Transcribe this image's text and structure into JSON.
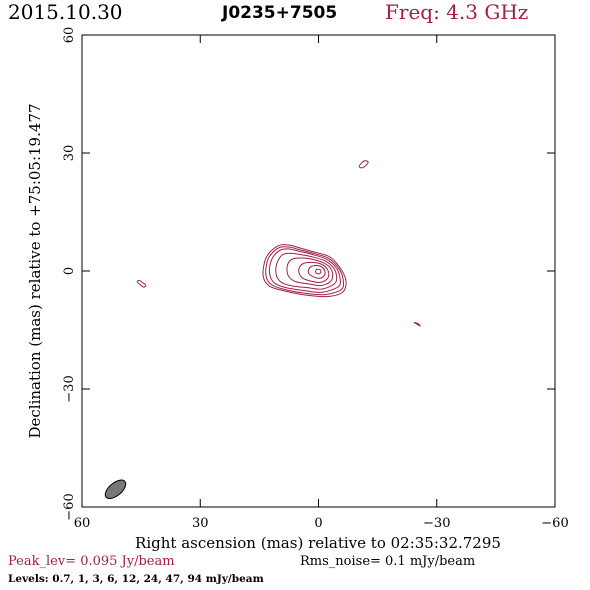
{
  "header": {
    "date": "2015.10.30",
    "source": "J0235+7505",
    "frequency": "Freq: 4.3 GHz"
  },
  "footer": {
    "peak": "Peak_lev=  0.095 Jy/beam",
    "rms": "Rms_noise=   0.1 mJy/beam",
    "levels": "Levels: 0.7,    1,    3,    6,   12,   24,   47,   94  mJy/beam"
  },
  "colors": {
    "contour": "#a0204a",
    "frame": "#000000",
    "beam_fill": "#777777",
    "accent_text": "#a0204a"
  },
  "chart_data": {
    "type": "contour",
    "xlabel": "Right ascension (mas) relative to 02:35:32.7295",
    "ylabel": "Declination (mas) relative to +75:05:19.477",
    "xlim": [
      60,
      -60
    ],
    "ylim": [
      -60,
      60
    ],
    "xticks": [
      60,
      30,
      0,
      -30,
      -60
    ],
    "yticks": [
      60,
      30,
      0,
      -30,
      -60
    ],
    "xtick_labels": [
      "60",
      "30",
      "0",
      "−30",
      "−60"
    ],
    "ytick_labels": [
      "60",
      "30",
      "0",
      "−30",
      "−60"
    ],
    "grid": false,
    "levels_mJy": [
      0.7,
      1,
      3,
      6,
      12,
      24,
      47,
      94
    ],
    "peak_Jy_per_beam": 0.095,
    "rms_mJy_per_beam": 0.1,
    "beam": {
      "x": 51.5,
      "y": -55.5,
      "major": 6.2,
      "minor": 3.2,
      "pa_deg": -40
    },
    "contours": [
      {
        "level": 0.7,
        "points": [
          [
            4,
            -6
          ],
          [
            -2,
            -6.5
          ],
          [
            -6,
            -5.5
          ],
          [
            -7,
            -3
          ],
          [
            -6,
            0
          ],
          [
            -3,
            3.5
          ],
          [
            1,
            4.8
          ],
          [
            4.5,
            5.8
          ],
          [
            7.5,
            6.6
          ],
          [
            10,
            6.5
          ],
          [
            12.5,
            4.6
          ],
          [
            13.7,
            2.2
          ],
          [
            14,
            -1.5
          ],
          [
            12.5,
            -3.8
          ],
          [
            9,
            -5
          ]
        ]
      },
      {
        "level": 1,
        "points": [
          [
            3.8,
            -5.6
          ],
          [
            -1.5,
            -6
          ],
          [
            -5.7,
            -4.8
          ],
          [
            -6.3,
            -2.5
          ],
          [
            -5.3,
            0.4
          ],
          [
            -2.6,
            3.2
          ],
          [
            1.3,
            4.5
          ],
          [
            4.7,
            5.4
          ],
          [
            7.5,
            6.1
          ],
          [
            9.8,
            6
          ],
          [
            12,
            4.3
          ],
          [
            13.1,
            2
          ],
          [
            13.3,
            -1.3
          ],
          [
            11.9,
            -3.5
          ],
          [
            8.6,
            -4.7
          ]
        ]
      },
      {
        "level": 3,
        "points": [
          [
            3.5,
            -5
          ],
          [
            -1,
            -5.4
          ],
          [
            -5,
            -4
          ],
          [
            -5.5,
            -2
          ],
          [
            -4.5,
            0.8
          ],
          [
            -2,
            3
          ],
          [
            1.5,
            4.2
          ],
          [
            4.8,
            5
          ],
          [
            7.4,
            5.6
          ],
          [
            9.5,
            5.4
          ],
          [
            11.3,
            3.9
          ],
          [
            12.3,
            1.6
          ],
          [
            12.3,
            -1.2
          ],
          [
            11,
            -3.2
          ],
          [
            8,
            -4.3
          ]
        ]
      },
      {
        "level": 6,
        "points": [
          [
            3,
            -4.2
          ],
          [
            -0.8,
            -4.6
          ],
          [
            -4,
            -3.3
          ],
          [
            -4.6,
            -1.5
          ],
          [
            -3.8,
            0.8
          ],
          [
            -1.6,
            2.6
          ],
          [
            1.6,
            3.6
          ],
          [
            4.7,
            4.2
          ],
          [
            7,
            4.5
          ],
          [
            9,
            4.2
          ],
          [
            10.2,
            2.8
          ],
          [
            10.8,
            0.9
          ],
          [
            10.6,
            -1.4
          ],
          [
            9.2,
            -3
          ],
          [
            6.6,
            -3.8
          ]
        ]
      },
      {
        "level": 12,
        "points": [
          [
            2.4,
            -3.3
          ],
          [
            -0.6,
            -3.7
          ],
          [
            -3,
            -2.7
          ],
          [
            -3.6,
            -1
          ],
          [
            -2.9,
            0.9
          ],
          [
            -1,
            2.2
          ],
          [
            1.6,
            3
          ],
          [
            4,
            3.3
          ],
          [
            6.1,
            3.2
          ],
          [
            7.5,
            2.3
          ],
          [
            8,
            0.5
          ],
          [
            7.5,
            -1.5
          ],
          [
            5.8,
            -2.7
          ]
        ]
      },
      {
        "level": 24,
        "points": [
          [
            1.8,
            -2.6
          ],
          [
            -0.4,
            -2.9
          ],
          [
            -2.2,
            -2
          ],
          [
            -2.6,
            -0.6
          ],
          [
            -1.9,
            0.9
          ],
          [
            -0.3,
            1.9
          ],
          [
            1.8,
            2.2
          ],
          [
            3.6,
            2
          ],
          [
            4.8,
            1
          ],
          [
            4.9,
            -0.6
          ],
          [
            3.9,
            -1.9
          ]
        ]
      },
      {
        "level": 47,
        "points": [
          [
            1,
            -1.6
          ],
          [
            -0.5,
            -1.8
          ],
          [
            -1.5,
            -1.1
          ],
          [
            -1.6,
            0
          ],
          [
            -0.9,
            1
          ],
          [
            0.4,
            1.4
          ],
          [
            1.7,
            1.2
          ],
          [
            2.5,
            0.4
          ],
          [
            2.4,
            -0.7
          ]
        ]
      },
      {
        "level": 94,
        "points": [
          [
            0.5,
            -0.6
          ],
          [
            -0.2,
            -0.7
          ],
          [
            -0.6,
            -0.3
          ],
          [
            -0.5,
            0.25
          ],
          [
            0,
            0.45
          ],
          [
            0.55,
            0.3
          ],
          [
            0.75,
            -0.15
          ]
        ]
      },
      {
        "level": 0.7,
        "points": [
          [
            45.4,
            -2.4
          ],
          [
            44.6,
            -3
          ],
          [
            43.8,
            -3.6
          ],
          [
            44.4,
            -4.1
          ],
          [
            45.3,
            -3.4
          ],
          [
            46,
            -2.7
          ]
        ]
      },
      {
        "level": 0.7,
        "points": [
          [
            -11.6,
            28
          ],
          [
            -12.6,
            27.6
          ],
          [
            -11.3,
            26.3
          ],
          [
            -10.3,
            26.6
          ]
        ]
      },
      {
        "level": 0.7,
        "points": [
          [
            -24.3,
            -13.1
          ],
          [
            -25.1,
            -13.6
          ],
          [
            -25.8,
            -14
          ],
          [
            -25.3,
            -13.4
          ]
        ]
      }
    ]
  }
}
